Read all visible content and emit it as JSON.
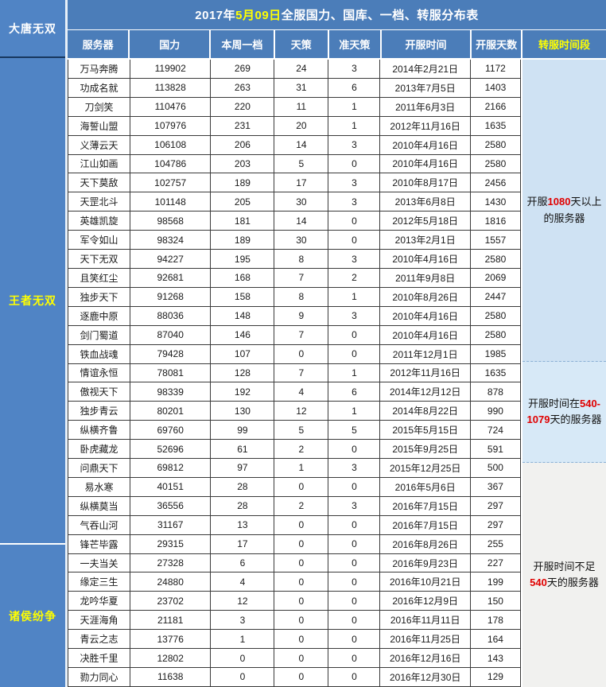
{
  "sidebar": {
    "game_title": "大唐无双",
    "groups": [
      {
        "key": "wangzhe-wushuang",
        "label": "王者无双",
        "rows": 26
      },
      {
        "key": "zhuhou-fenzheng",
        "label": "诸侯纷争",
        "rows": 7
      }
    ]
  },
  "title": {
    "prefix": "2017年",
    "date": "5月09日",
    "suffix": "全服国力、国库、一档、转服分布表"
  },
  "table": {
    "columns": [
      {
        "key": "server",
        "label": "服务器"
      },
      {
        "key": "guoli",
        "label": "国力"
      },
      {
        "key": "weekly-tier1",
        "label": "本周一档"
      },
      {
        "key": "tiance",
        "label": "天策"
      },
      {
        "key": "quasi-tiance",
        "label": "准天策"
      },
      {
        "key": "open-date",
        "label": "开服时间"
      },
      {
        "key": "open-days",
        "label": "开服天数"
      }
    ],
    "rows": [
      [
        "万马奔腾",
        "119902",
        "269",
        "24",
        "3",
        "2014年2月21日",
        "1172"
      ],
      [
        "功成名就",
        "113828",
        "263",
        "31",
        "6",
        "2013年7月5日",
        "1403"
      ],
      [
        "刀剑笑",
        "110476",
        "220",
        "11",
        "1",
        "2011年6月3日",
        "2166"
      ],
      [
        "海誓山盟",
        "107976",
        "231",
        "20",
        "1",
        "2012年11月16日",
        "1635"
      ],
      [
        "义薄云天",
        "106108",
        "206",
        "14",
        "3",
        "2010年4月16日",
        "2580"
      ],
      [
        "江山如画",
        "104786",
        "203",
        "5",
        "0",
        "2010年4月16日",
        "2580"
      ],
      [
        "天下莫敌",
        "102757",
        "189",
        "17",
        "3",
        "2010年8月17日",
        "2456"
      ],
      [
        "天罡北斗",
        "101148",
        "205",
        "30",
        "3",
        "2013年6月8日",
        "1430"
      ],
      [
        "英雄凯旋",
        "98568",
        "181",
        "14",
        "0",
        "2012年5月18日",
        "1816"
      ],
      [
        "军令如山",
        "98324",
        "189",
        "30",
        "0",
        "2013年2月1日",
        "1557"
      ],
      [
        "天下无双",
        "94227",
        "195",
        "8",
        "3",
        "2010年4月16日",
        "2580"
      ],
      [
        "且笑红尘",
        "92681",
        "168",
        "7",
        "2",
        "2011年9月8日",
        "2069"
      ],
      [
        "独步天下",
        "91268",
        "158",
        "8",
        "1",
        "2010年8月26日",
        "2447"
      ],
      [
        "逐鹿中原",
        "88036",
        "148",
        "9",
        "3",
        "2010年4月16日",
        "2580"
      ],
      [
        "剑门蜀道",
        "87040",
        "146",
        "7",
        "0",
        "2010年4月16日",
        "2580"
      ],
      [
        "铁血战魂",
        "79428",
        "107",
        "0",
        "0",
        "2011年12月1日",
        "1985"
      ],
      [
        "情谊永恒",
        "78081",
        "128",
        "7",
        "1",
        "2012年11月16日",
        "1635"
      ],
      [
        "傲视天下",
        "98339",
        "192",
        "4",
        "6",
        "2014年12月12日",
        "878"
      ],
      [
        "独步青云",
        "80201",
        "130",
        "12",
        "1",
        "2014年8月22日",
        "990"
      ],
      [
        "纵横齐鲁",
        "69760",
        "99",
        "5",
        "5",
        "2015年5月15日",
        "724"
      ],
      [
        "卧虎藏龙",
        "52696",
        "61",
        "2",
        "0",
        "2015年9月25日",
        "591"
      ],
      [
        "问鼎天下",
        "69812",
        "97",
        "1",
        "3",
        "2015年12月25日",
        "500"
      ],
      [
        "易水寒",
        "40151",
        "28",
        "0",
        "0",
        "2016年5月6日",
        "367"
      ],
      [
        "纵横莫当",
        "36556",
        "28",
        "2",
        "3",
        "2016年7月15日",
        "297"
      ],
      [
        "气吞山河",
        "31167",
        "13",
        "0",
        "0",
        "2016年7月15日",
        "297"
      ],
      [
        "锋芒毕露",
        "29315",
        "17",
        "0",
        "0",
        "2016年8月26日",
        "255"
      ],
      [
        "一夫当关",
        "27328",
        "6",
        "0",
        "0",
        "2016年9月23日",
        "227"
      ],
      [
        "缘定三生",
        "24880",
        "4",
        "0",
        "0",
        "2016年10月21日",
        "199"
      ],
      [
        "龙吟华夏",
        "23702",
        "12",
        "0",
        "0",
        "2016年12月9日",
        "150"
      ],
      [
        "天涯海角",
        "21181",
        "3",
        "0",
        "0",
        "2016年11月11日",
        "178"
      ],
      [
        "青云之志",
        "13776",
        "1",
        "0",
        "0",
        "2016年11月25日",
        "164"
      ],
      [
        "决胜千里",
        "12802",
        "0",
        "0",
        "0",
        "2016年12月16日",
        "143"
      ],
      [
        "勠力同心",
        "11638",
        "0",
        "0",
        "0",
        "2016年12月30日",
        "129"
      ]
    ]
  },
  "transfer": {
    "header": "转服时间段",
    "sections": [
      {
        "key": "over-1080-days",
        "rows": 17,
        "bg": "#cfe2f3",
        "segments": [
          {
            "text": "开服"
          },
          {
            "text": "1080",
            "red": true
          },
          {
            "text": "天以上的服务器"
          }
        ]
      },
      {
        "key": "540-to-1079-days",
        "rows": 4,
        "bg": "#d7e9f7",
        "segments": [
          {
            "text": "开服时间在"
          },
          {
            "text": "540-1079",
            "red": true
          },
          {
            "text": "天的服务器"
          }
        ]
      },
      {
        "key": "under-540-days",
        "rows": 12,
        "bg": "#f1f1ef",
        "segments": [
          {
            "text": "开服时间不足"
          },
          {
            "text": "540",
            "red": true
          },
          {
            "text": "天的服务器"
          }
        ]
      }
    ]
  },
  "colors": {
    "header_blue": "#4b7db9",
    "sidebar_blue": "#5084c5",
    "highlight_yellow": "#ffff00",
    "alert_red": "#e00000",
    "section_light_blue": "#cfe2f3",
    "section_gray": "#f1f1ef"
  }
}
